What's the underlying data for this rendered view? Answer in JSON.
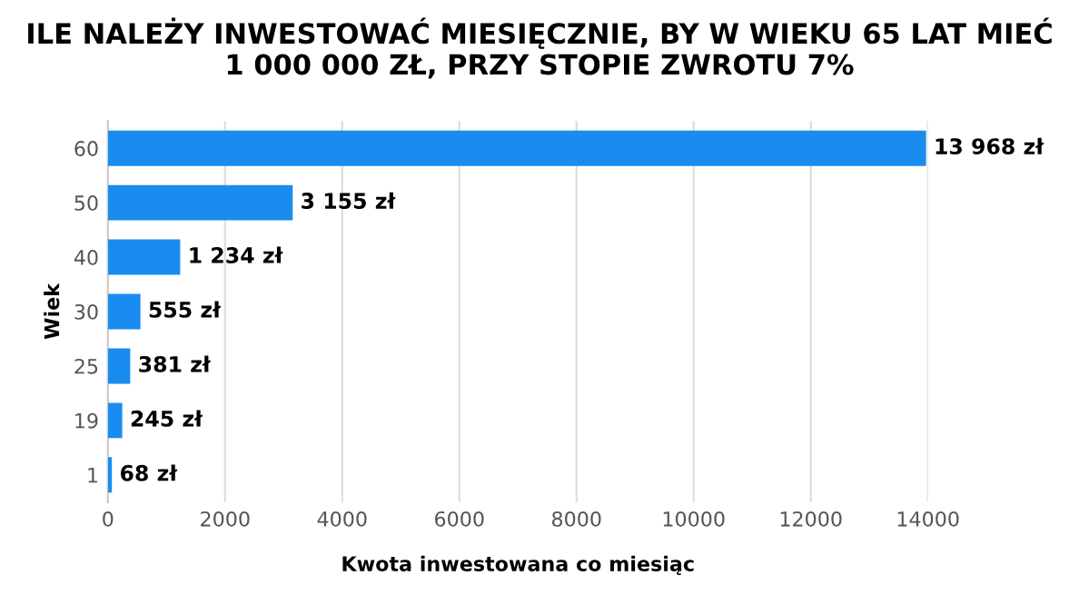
{
  "chart_data": {
    "type": "bar",
    "orientation": "horizontal",
    "title": "ILE NALEŻY INWESTOWAĆ MIESIĘCZNIE, BY W WIEKU 65 LAT MIEĆ\n1 000 000 ZŁ, PRZY STOPIE ZWROTU 7%",
    "xlabel": "Kwota inwestowana co miesiąc",
    "ylabel": "Wiek",
    "categories": [
      "60",
      "50",
      "40",
      "30",
      "25",
      "19",
      "1"
    ],
    "values": [
      13968,
      3155,
      1234,
      555,
      381,
      245,
      68
    ],
    "value_labels": [
      "13 968 zł",
      "3 155 zł",
      "1 234 zł",
      "555 zł",
      "381 zł",
      "245 zł",
      "68 zł"
    ],
    "color": "#1a8cf0",
    "xlim": [
      0,
      14000
    ],
    "xticks": [
      0,
      2000,
      4000,
      6000,
      8000,
      10000,
      12000,
      14000
    ],
    "grid": "x"
  }
}
